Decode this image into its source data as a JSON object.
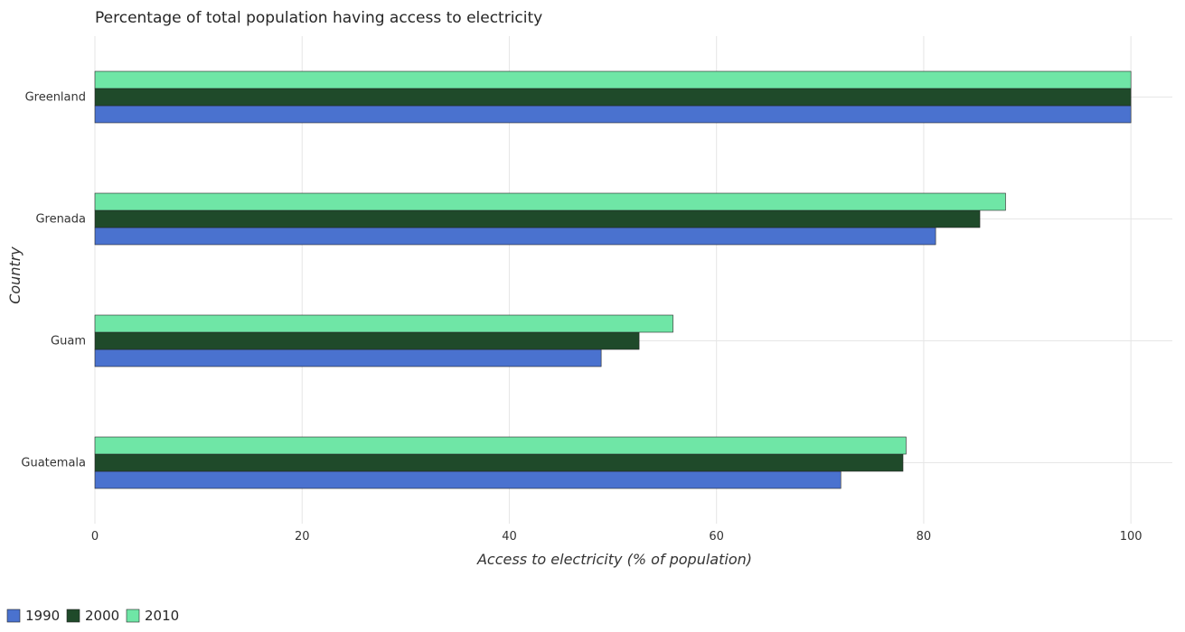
{
  "chart_data": {
    "type": "bar",
    "orientation": "horizontal",
    "title": "Percentage of total population having access to electricity",
    "xlabel": "Access to electricity (% of population)",
    "ylabel": "Country",
    "categories": [
      "Greenland",
      "Grenada",
      "Guam",
      "Guatemala"
    ],
    "series": [
      {
        "name": "1990",
        "color": "#4a72cf",
        "values": [
          100,
          81.15,
          48.87,
          72.0
        ]
      },
      {
        "name": "2000",
        "color": "#1f4a2a",
        "values": [
          100,
          85.42,
          52.53,
          78.0
        ]
      },
      {
        "name": "2010",
        "color": "#6fe6a6",
        "values": [
          100,
          87.9,
          55.8,
          78.3
        ]
      }
    ],
    "xlim": [
      0,
      104
    ],
    "xticks": [
      0,
      20,
      40,
      60,
      80,
      100
    ],
    "grid": true,
    "legend_position": "bottom-left"
  }
}
